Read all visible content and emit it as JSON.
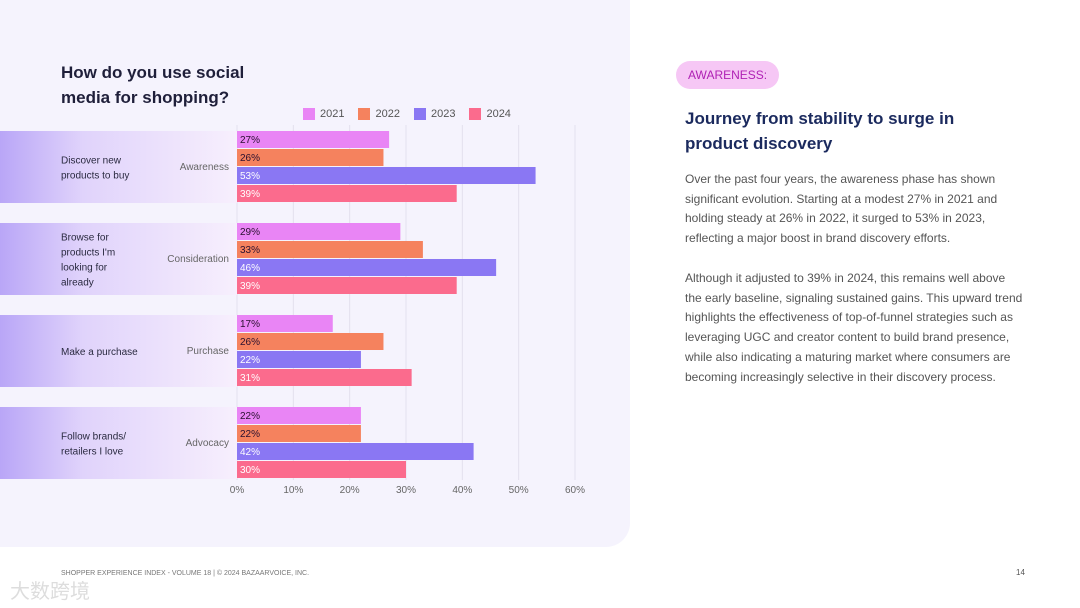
{
  "chart_data": {
    "type": "bar",
    "orientation": "horizontal",
    "title": "How do you use social media for shopping?",
    "categories": [
      {
        "label": "Discover new products to buy",
        "stage": "Awareness"
      },
      {
        "label": "Browse for products I'm looking for already",
        "stage": "Consideration"
      },
      {
        "label": "Make a purchase",
        "stage": "Purchase"
      },
      {
        "label": "Follow brands/ retailers I love",
        "stage": "Advocacy"
      }
    ],
    "series": [
      {
        "name": "2021",
        "color": "#e985f5",
        "values": [
          27,
          29,
          17,
          22
        ]
      },
      {
        "name": "2022",
        "color": "#f5825e",
        "values": [
          26,
          33,
          26,
          22
        ]
      },
      {
        "name": "2023",
        "color": "#8a77f3",
        "values": [
          53,
          46,
          22,
          42
        ]
      },
      {
        "name": "2024",
        "color": "#fb6b8d",
        "values": [
          39,
          39,
          31,
          30
        ]
      }
    ],
    "xlim": [
      0,
      60
    ],
    "xticks": [
      "0%",
      "10%",
      "20%",
      "30%",
      "40%",
      "50%",
      "60%"
    ],
    "grid": true,
    "legend": "top"
  },
  "right": {
    "tag": "AWARENESS:",
    "heading": "Journey from stability to surge in product discovery",
    "para1": "Over the past four years, the awareness phase has shown significant evolution. Starting at a modest 27% in 2021 and holding steady at 26% in 2022, it surged to 53% in 2023, reflecting a major boost in brand discovery efforts.",
    "para2": "Although it adjusted to 39% in 2024, this remains well above the early baseline, signaling sustained gains. This upward trend highlights the effectiveness of top-of-funnel strategies such as leveraging UGC and creator content to build brand presence, while also indicating a maturing market where consumers are becoming increasingly selective in their discovery process."
  },
  "footer": {
    "text": "SHOPPER EXPERIENCE INDEX - VOLUME 18  |  © 2024 BAZAARVOICE, INC.",
    "page": "14",
    "watermark": "大数跨境"
  }
}
